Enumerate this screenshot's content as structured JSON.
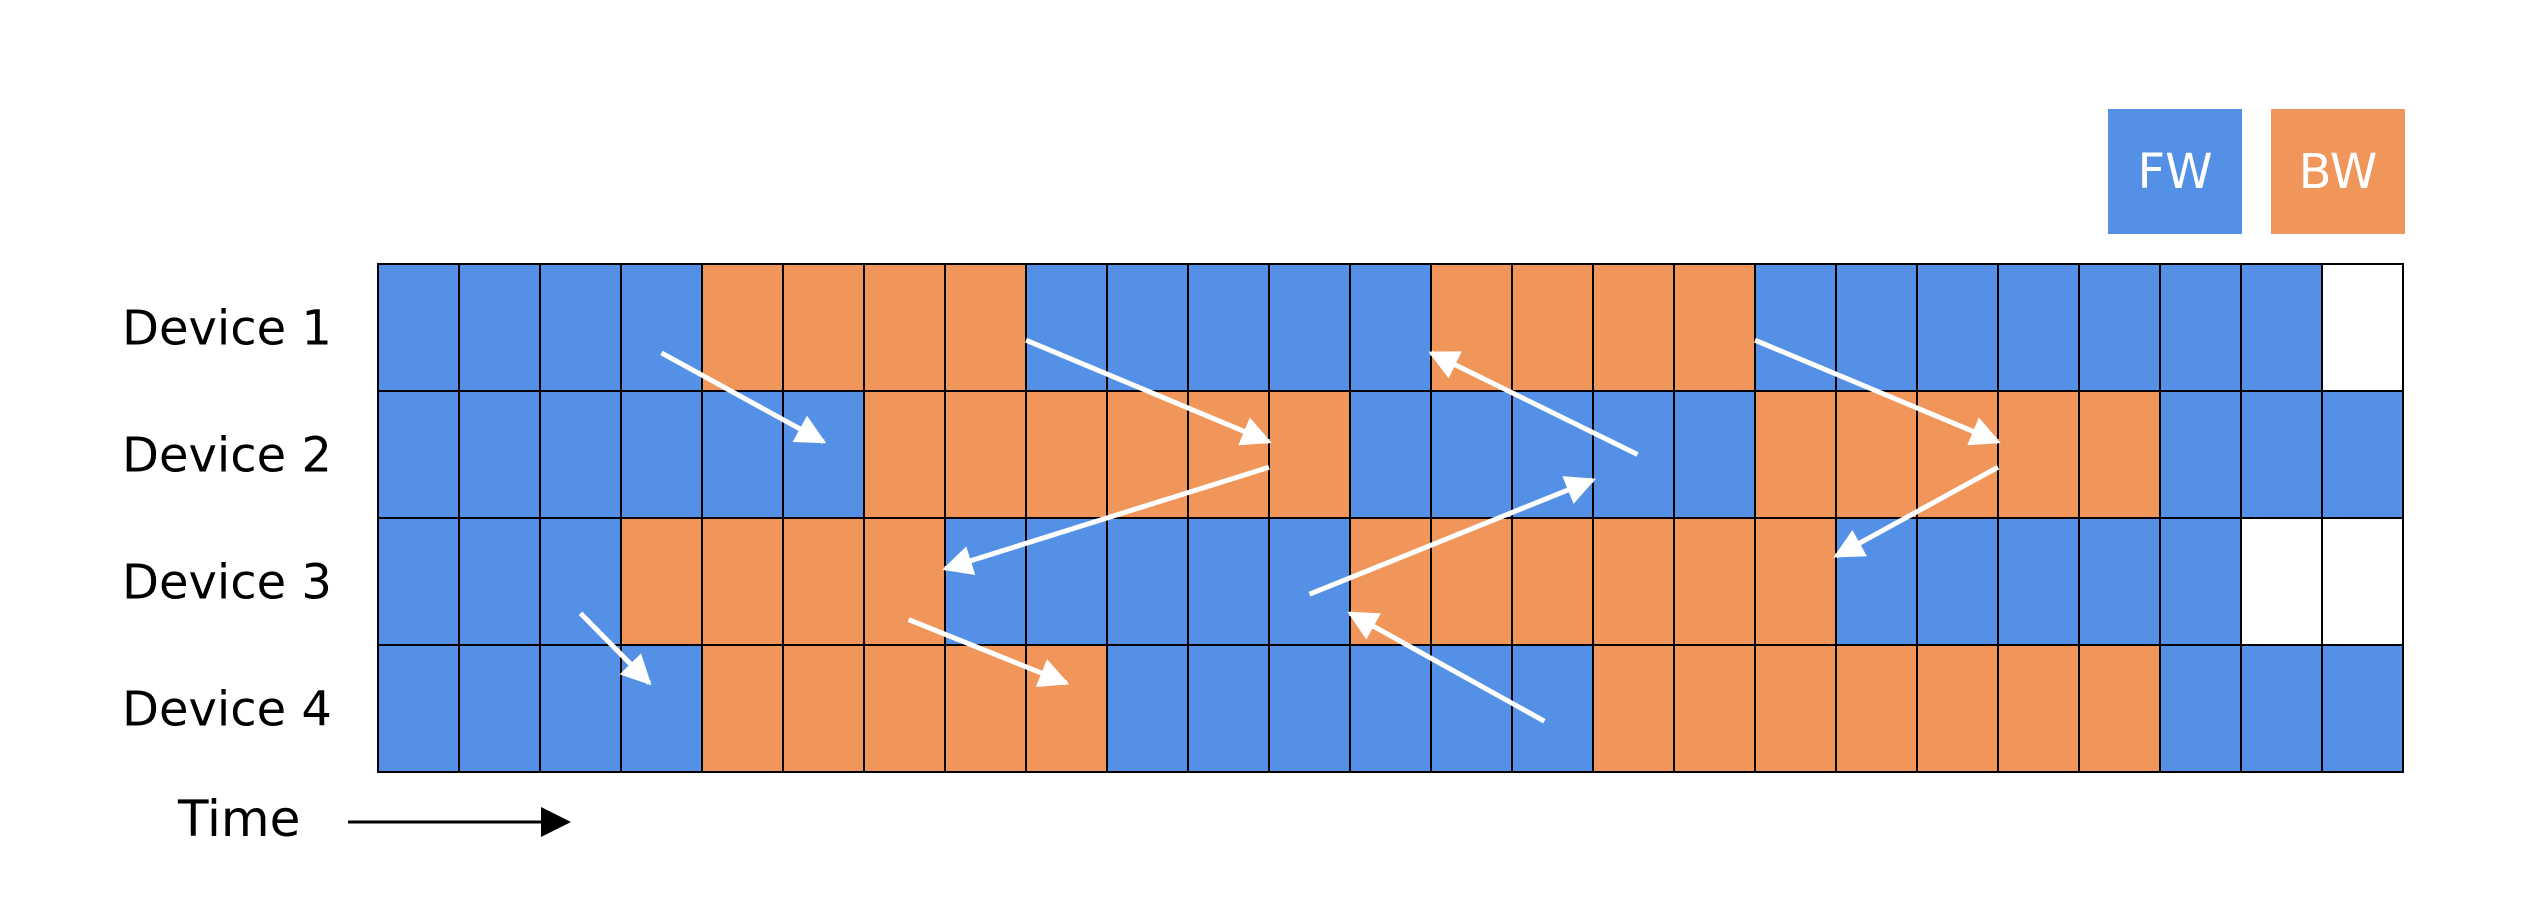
{
  "legend": {
    "fw": {
      "label": "FW",
      "color": "#5390e6"
    },
    "bw": {
      "label": "BW",
      "color": "#f0965a"
    }
  },
  "empty_color": "#ffffff",
  "devices": [
    {
      "label": "Device 1",
      "slots": [
        "F",
        "F",
        "F",
        "F",
        "B",
        "B",
        "B",
        "B",
        "F",
        "F",
        "F",
        "F",
        "F",
        "B",
        "B",
        "B",
        "B",
        "F",
        "F",
        "F",
        "F",
        "F",
        "F",
        "F",
        "E"
      ]
    },
    {
      "label": "Device 2",
      "slots": [
        "F",
        "F",
        "F",
        "F",
        "F",
        "F",
        "B",
        "B",
        "B",
        "B",
        "B",
        "B",
        "F",
        "F",
        "F",
        "F",
        "F",
        "B",
        "B",
        "B",
        "B",
        "B",
        "F",
        "F",
        "F"
      ]
    },
    {
      "label": "Device 3",
      "slots": [
        "F",
        "F",
        "F",
        "B",
        "B",
        "B",
        "B",
        "F",
        "F",
        "F",
        "F",
        "F",
        "B",
        "B",
        "B",
        "B",
        "B",
        "B",
        "F",
        "F",
        "F",
        "F",
        "F",
        "E",
        "E"
      ]
    },
    {
      "label": "Device 4",
      "slots": [
        "F",
        "F",
        "F",
        "F",
        "B",
        "B",
        "B",
        "B",
        "B",
        "F",
        "F",
        "F",
        "F",
        "F",
        "F",
        "B",
        "B",
        "B",
        "B",
        "B",
        "B",
        "B",
        "F",
        "F",
        "F"
      ]
    }
  ],
  "time_label": "Time",
  "dependency_arrows": [
    {
      "from": [
        3.5,
        0.7
      ],
      "to": [
        5.5,
        1.4
      ]
    },
    {
      "from": [
        8.0,
        0.6
      ],
      "to": [
        11.0,
        1.4
      ]
    },
    {
      "from": [
        11.0,
        1.6
      ],
      "to": [
        7.0,
        2.4
      ]
    },
    {
      "from": [
        2.5,
        2.75
      ],
      "to": [
        3.35,
        3.3
      ]
    },
    {
      "from": [
        6.55,
        2.8
      ],
      "to": [
        8.5,
        3.3
      ]
    },
    {
      "from": [
        14.4,
        3.6
      ],
      "to": [
        12.0,
        2.75
      ]
    },
    {
      "from": [
        11.5,
        2.6
      ],
      "to": [
        15.0,
        1.7
      ]
    },
    {
      "from": [
        15.55,
        1.5
      ],
      "to": [
        13.0,
        0.7
      ]
    },
    {
      "from": [
        17.0,
        0.6
      ],
      "to": [
        20.0,
        1.4
      ]
    },
    {
      "from": [
        20.0,
        1.6
      ],
      "to": [
        18.0,
        2.3
      ]
    }
  ]
}
